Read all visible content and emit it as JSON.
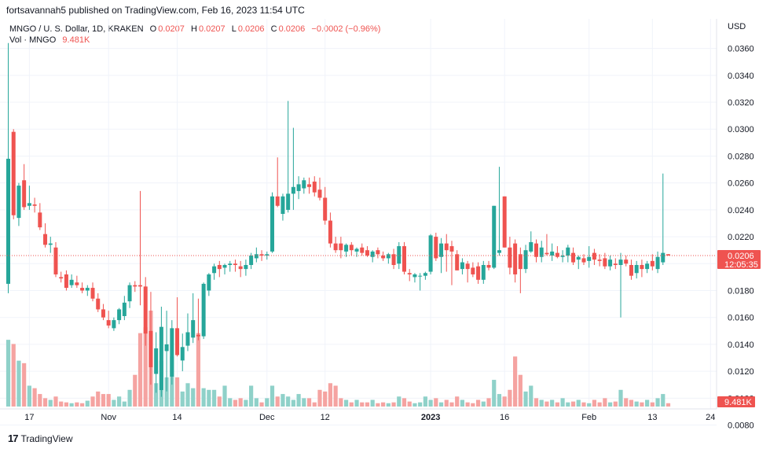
{
  "header": {
    "published": "fortsavannah5 published on TradingView.com, Feb 16, 2023 11:54 UTC",
    "symbol": "MNGO / U. S. Dollar, 1D, KRAKEN",
    "o_label": "O",
    "o_value": "0.0207",
    "h_label": "H",
    "h_value": "0.0207",
    "l_label": "L",
    "l_value": "0.0206",
    "c_label": "C",
    "c_value": "0.0206",
    "change": "−0.0002 (−0.96%)",
    "vol_label": "Vol · MNGO",
    "vol_value": "9.481K"
  },
  "footer": {
    "brand": "TradingView",
    "logo_glyph": "17"
  },
  "colors": {
    "up": "#26a69a",
    "down": "#ef5350",
    "up_vol": "#8fd1c9",
    "down_vol": "#f5a3a1",
    "grid": "#f0f3fa",
    "axis_text": "#131722",
    "price_tag": "#ef5350"
  },
  "chart_data": {
    "type": "candlestick",
    "currency": "USD",
    "ylim": [
      0.0092,
      0.0382
    ],
    "y_ticks": [
      "0.0360",
      "0.0340",
      "0.0320",
      "0.0300",
      "0.0280",
      "0.0260",
      "0.0240",
      "0.0220",
      "0.0200",
      "0.0180",
      "0.0160",
      "0.0140",
      "0.0120",
      "0.0100",
      "0.0080"
    ],
    "x_ticks": [
      {
        "label": "17",
        "i": 4
      },
      {
        "label": "Nov",
        "i": 19
      },
      {
        "label": "14",
        "i": 32
      },
      {
        "label": "Dec",
        "i": 49
      },
      {
        "label": "12",
        "i": 60
      },
      {
        "label": "2023",
        "i": 80,
        "bold": true
      },
      {
        "label": "16",
        "i": 94
      },
      {
        "label": "Feb",
        "i": 110
      },
      {
        "label": "13",
        "i": 122
      },
      {
        "label": "24",
        "i": 133
      }
    ],
    "last_price": "0.0206",
    "countdown": "12:05:35",
    "last_volume": "9.481K",
    "candles": [
      {
        "o": 0.0185,
        "h": 0.0364,
        "l": 0.0178,
        "c": 0.0278,
        "v": 80
      },
      {
        "o": 0.0298,
        "h": 0.03,
        "l": 0.0233,
        "c": 0.0236,
        "v": 75
      },
      {
        "o": 0.0234,
        "h": 0.026,
        "l": 0.0228,
        "c": 0.0258,
        "v": 55
      },
      {
        "o": 0.0262,
        "h": 0.0274,
        "l": 0.024,
        "c": 0.0242,
        "v": 52
      },
      {
        "o": 0.0243,
        "h": 0.0258,
        "l": 0.024,
        "c": 0.0245,
        "v": 25
      },
      {
        "o": 0.0244,
        "h": 0.0249,
        "l": 0.0238,
        "c": 0.0243,
        "v": 22
      },
      {
        "o": 0.0238,
        "h": 0.0245,
        "l": 0.0225,
        "c": 0.0227,
        "v": 15
      },
      {
        "o": 0.0222,
        "h": 0.023,
        "l": 0.0212,
        "c": 0.0214,
        "v": 10
      },
      {
        "o": 0.0214,
        "h": 0.022,
        "l": 0.0208,
        "c": 0.0215,
        "v": 8
      },
      {
        "o": 0.0212,
        "h": 0.0216,
        "l": 0.019,
        "c": 0.0192,
        "v": 12
      },
      {
        "o": 0.019,
        "h": 0.0194,
        "l": 0.0186,
        "c": 0.0189,
        "v": 6
      },
      {
        "o": 0.0192,
        "h": 0.0195,
        "l": 0.018,
        "c": 0.0182,
        "v": 5
      },
      {
        "o": 0.0184,
        "h": 0.0192,
        "l": 0.0182,
        "c": 0.0188,
        "v": 4
      },
      {
        "o": 0.0186,
        "h": 0.0191,
        "l": 0.0182,
        "c": 0.0184,
        "v": 5
      },
      {
        "o": 0.0182,
        "h": 0.0186,
        "l": 0.0178,
        "c": 0.018,
        "v": 4
      },
      {
        "o": 0.018,
        "h": 0.0184,
        "l": 0.0176,
        "c": 0.0182,
        "v": 7
      },
      {
        "o": 0.0182,
        "h": 0.0186,
        "l": 0.0172,
        "c": 0.0174,
        "v": 12
      },
      {
        "o": 0.0174,
        "h": 0.0178,
        "l": 0.0164,
        "c": 0.0166,
        "v": 18
      },
      {
        "o": 0.0166,
        "h": 0.017,
        "l": 0.0158,
        "c": 0.016,
        "v": 15
      },
      {
        "o": 0.0158,
        "h": 0.0165,
        "l": 0.0152,
        "c": 0.0154,
        "v": 15
      },
      {
        "o": 0.0152,
        "h": 0.016,
        "l": 0.015,
        "c": 0.0158,
        "v": 8
      },
      {
        "o": 0.0158,
        "h": 0.0167,
        "l": 0.0155,
        "c": 0.0166,
        "v": 12
      },
      {
        "o": 0.0161,
        "h": 0.0176,
        "l": 0.0158,
        "c": 0.0171,
        "v": 6
      },
      {
        "o": 0.0172,
        "h": 0.0186,
        "l": 0.0167,
        "c": 0.0184,
        "v": 20
      },
      {
        "o": 0.0184,
        "h": 0.0187,
        "l": 0.0179,
        "c": 0.0183,
        "v": 38
      },
      {
        "o": 0.0184,
        "h": 0.0254,
        "l": 0.0169,
        "c": 0.0183,
        "v": 88
      },
      {
        "o": 0.0183,
        "h": 0.019,
        "l": 0.0139,
        "c": 0.0148,
        "v": 95
      },
      {
        "o": 0.015,
        "h": 0.0179,
        "l": 0.011,
        "c": 0.0123,
        "v": 115
      },
      {
        "o": 0.0118,
        "h": 0.0149,
        "l": 0.0104,
        "c": 0.0137,
        "v": 28
      },
      {
        "o": 0.0106,
        "h": 0.0168,
        "l": 0.0101,
        "c": 0.0153,
        "v": 55
      },
      {
        "o": 0.0135,
        "h": 0.0165,
        "l": 0.0105,
        "c": 0.014,
        "v": 35
      },
      {
        "o": 0.0116,
        "h": 0.0158,
        "l": 0.011,
        "c": 0.0152,
        "v": 60
      },
      {
        "o": 0.0152,
        "h": 0.0175,
        "l": 0.0131,
        "c": 0.0132,
        "v": 35
      },
      {
        "o": 0.0128,
        "h": 0.0148,
        "l": 0.012,
        "c": 0.0138,
        "v": 18
      },
      {
        "o": 0.0139,
        "h": 0.0163,
        "l": 0.0135,
        "c": 0.0149,
        "v": 28
      },
      {
        "o": 0.0145,
        "h": 0.0178,
        "l": 0.0141,
        "c": 0.0158,
        "v": 22
      },
      {
        "o": 0.0147,
        "h": 0.0174,
        "l": 0.0143,
        "c": 0.0146,
        "v": 88
      },
      {
        "o": 0.0146,
        "h": 0.0186,
        "l": 0.0144,
        "c": 0.0185,
        "v": 22
      },
      {
        "o": 0.018,
        "h": 0.0193,
        "l": 0.0176,
        "c": 0.0192,
        "v": 20
      },
      {
        "o": 0.0193,
        "h": 0.02,
        "l": 0.0188,
        "c": 0.0198,
        "v": 20
      },
      {
        "o": 0.0199,
        "h": 0.0202,
        "l": 0.019,
        "c": 0.0196,
        "v": 12
      },
      {
        "o": 0.0197,
        "h": 0.02,
        "l": 0.0192,
        "c": 0.0199,
        "v": 25
      },
      {
        "o": 0.0199,
        "h": 0.0202,
        "l": 0.0194,
        "c": 0.02,
        "v": 10
      },
      {
        "o": 0.02,
        "h": 0.0203,
        "l": 0.0194,
        "c": 0.0199,
        "v": 8
      },
      {
        "o": 0.0198,
        "h": 0.0202,
        "l": 0.019,
        "c": 0.0196,
        "v": 10
      },
      {
        "o": 0.0196,
        "h": 0.0203,
        "l": 0.0191,
        "c": 0.0199,
        "v": 8
      },
      {
        "o": 0.0199,
        "h": 0.0208,
        "l": 0.0196,
        "c": 0.0206,
        "v": 25
      },
      {
        "o": 0.0204,
        "h": 0.0212,
        "l": 0.0201,
        "c": 0.0207,
        "v": 10
      },
      {
        "o": 0.0207,
        "h": 0.021,
        "l": 0.0202,
        "c": 0.0206,
        "v": 5
      },
      {
        "o": 0.0206,
        "h": 0.0209,
        "l": 0.0203,
        "c": 0.0207,
        "v": 10
      },
      {
        "o": 0.0209,
        "h": 0.0253,
        "l": 0.0208,
        "c": 0.025,
        "v": 25
      },
      {
        "o": 0.025,
        "h": 0.0279,
        "l": 0.0242,
        "c": 0.0243,
        "v": 12
      },
      {
        "o": 0.0237,
        "h": 0.0252,
        "l": 0.0232,
        "c": 0.025,
        "v": 15
      },
      {
        "o": 0.024,
        "h": 0.0321,
        "l": 0.0238,
        "c": 0.0252,
        "v": 12
      },
      {
        "o": 0.0252,
        "h": 0.0301,
        "l": 0.024,
        "c": 0.0257,
        "v": 8
      },
      {
        "o": 0.0254,
        "h": 0.0265,
        "l": 0.0248,
        "c": 0.0259,
        "v": 15
      },
      {
        "o": 0.0256,
        "h": 0.0264,
        "l": 0.0252,
        "c": 0.0262,
        "v": 10
      },
      {
        "o": 0.0259,
        "h": 0.0264,
        "l": 0.0252,
        "c": 0.0257,
        "v": 10
      },
      {
        "o": 0.0261,
        "h": 0.0265,
        "l": 0.025,
        "c": 0.0253,
        "v": 5
      },
      {
        "o": 0.0255,
        "h": 0.0264,
        "l": 0.0247,
        "c": 0.0249,
        "v": 20
      },
      {
        "o": 0.0249,
        "h": 0.0257,
        "l": 0.0229,
        "c": 0.0232,
        "v": 18
      },
      {
        "o": 0.0232,
        "h": 0.0238,
        "l": 0.0212,
        "c": 0.0215,
        "v": 28
      },
      {
        "o": 0.0215,
        "h": 0.022,
        "l": 0.0208,
        "c": 0.021,
        "v": 25
      },
      {
        "o": 0.0215,
        "h": 0.022,
        "l": 0.0204,
        "c": 0.021,
        "v": 10
      },
      {
        "o": 0.0209,
        "h": 0.0215,
        "l": 0.0205,
        "c": 0.0214,
        "v": 8
      },
      {
        "o": 0.0214,
        "h": 0.0216,
        "l": 0.0206,
        "c": 0.021,
        "v": 5
      },
      {
        "o": 0.0209,
        "h": 0.0212,
        "l": 0.0205,
        "c": 0.0211,
        "v": 8
      },
      {
        "o": 0.0212,
        "h": 0.0215,
        "l": 0.0206,
        "c": 0.0208,
        "v": 5
      },
      {
        "o": 0.021,
        "h": 0.0213,
        "l": 0.0205,
        "c": 0.0206,
        "v": 5
      },
      {
        "o": 0.0205,
        "h": 0.021,
        "l": 0.0201,
        "c": 0.0209,
        "v": 8
      },
      {
        "o": 0.021,
        "h": 0.0212,
        "l": 0.0204,
        "c": 0.0207,
        "v": 4
      },
      {
        "o": 0.0206,
        "h": 0.0209,
        "l": 0.0202,
        "c": 0.0204,
        "v": 5
      },
      {
        "o": 0.0204,
        "h": 0.0208,
        "l": 0.02,
        "c": 0.0207,
        "v": 4
      },
      {
        "o": 0.0207,
        "h": 0.0211,
        "l": 0.0196,
        "c": 0.0199,
        "v": 5
      },
      {
        "o": 0.02,
        "h": 0.0216,
        "l": 0.0196,
        "c": 0.0213,
        "v": 12
      },
      {
        "o": 0.0213,
        "h": 0.0216,
        "l": 0.0192,
        "c": 0.0194,
        "v": 10
      },
      {
        "o": 0.0193,
        "h": 0.0196,
        "l": 0.0187,
        "c": 0.0192,
        "v": 6
      },
      {
        "o": 0.019,
        "h": 0.0193,
        "l": 0.0186,
        "c": 0.0192,
        "v": 4
      },
      {
        "o": 0.0191,
        "h": 0.0193,
        "l": 0.018,
        "c": 0.0191,
        "v": 5
      },
      {
        "o": 0.0191,
        "h": 0.0194,
        "l": 0.0188,
        "c": 0.0193,
        "v": 12
      },
      {
        "o": 0.0194,
        "h": 0.0222,
        "l": 0.0192,
        "c": 0.0221,
        "v": 8
      },
      {
        "o": 0.022,
        "h": 0.0223,
        "l": 0.0202,
        "c": 0.0204,
        "v": 10
      },
      {
        "o": 0.0205,
        "h": 0.0219,
        "l": 0.0193,
        "c": 0.0215,
        "v": 5
      },
      {
        "o": 0.0215,
        "h": 0.0222,
        "l": 0.0194,
        "c": 0.021,
        "v": 8
      },
      {
        "o": 0.0213,
        "h": 0.0217,
        "l": 0.0184,
        "c": 0.0209,
        "v": 5
      },
      {
        "o": 0.0207,
        "h": 0.021,
        "l": 0.0195,
        "c": 0.0195,
        "v": 12
      },
      {
        "o": 0.0196,
        "h": 0.0204,
        "l": 0.0192,
        "c": 0.0201,
        "v": 8
      },
      {
        "o": 0.02,
        "h": 0.0202,
        "l": 0.0186,
        "c": 0.0196,
        "v": 5
      },
      {
        "o": 0.0197,
        "h": 0.0201,
        "l": 0.019,
        "c": 0.0192,
        "v": 4
      },
      {
        "o": 0.0198,
        "h": 0.0201,
        "l": 0.0185,
        "c": 0.0188,
        "v": 8
      },
      {
        "o": 0.0188,
        "h": 0.0202,
        "l": 0.0185,
        "c": 0.0199,
        "v": 6
      },
      {
        "o": 0.0199,
        "h": 0.0202,
        "l": 0.0195,
        "c": 0.0197,
        "v": 10
      },
      {
        "o": 0.0197,
        "h": 0.0243,
        "l": 0.0196,
        "c": 0.0243,
        "v": 32
      },
      {
        "o": 0.0208,
        "h": 0.0272,
        "l": 0.0206,
        "c": 0.021,
        "v": 15
      },
      {
        "o": 0.025,
        "h": 0.025,
        "l": 0.0212,
        "c": 0.0212,
        "v": 12
      },
      {
        "o": 0.0212,
        "h": 0.022,
        "l": 0.0192,
        "c": 0.0197,
        "v": 20
      },
      {
        "o": 0.0215,
        "h": 0.0218,
        "l": 0.0186,
        "c": 0.0192,
        "v": 60
      },
      {
        "o": 0.0207,
        "h": 0.0212,
        "l": 0.0178,
        "c": 0.0196,
        "v": 38
      },
      {
        "o": 0.0196,
        "h": 0.0214,
        "l": 0.0193,
        "c": 0.021,
        "v": 18
      },
      {
        "o": 0.0209,
        "h": 0.0224,
        "l": 0.0208,
        "c": 0.0216,
        "v": 25
      },
      {
        "o": 0.0215,
        "h": 0.0218,
        "l": 0.0201,
        "c": 0.0205,
        "v": 10
      },
      {
        "o": 0.0205,
        "h": 0.0217,
        "l": 0.0201,
        "c": 0.0212,
        "v": 8
      },
      {
        "o": 0.0208,
        "h": 0.0222,
        "l": 0.0206,
        "c": 0.0207,
        "v": 6
      },
      {
        "o": 0.0206,
        "h": 0.0215,
        "l": 0.0202,
        "c": 0.0209,
        "v": 8
      },
      {
        "o": 0.0208,
        "h": 0.0213,
        "l": 0.0204,
        "c": 0.0205,
        "v": 5
      },
      {
        "o": 0.0205,
        "h": 0.021,
        "l": 0.0201,
        "c": 0.0206,
        "v": 10
      },
      {
        "o": 0.0206,
        "h": 0.0214,
        "l": 0.0201,
        "c": 0.0212,
        "v": 5
      },
      {
        "o": 0.0208,
        "h": 0.0212,
        "l": 0.0199,
        "c": 0.0201,
        "v": 6
      },
      {
        "o": 0.0203,
        "h": 0.0206,
        "l": 0.0196,
        "c": 0.0205,
        "v": 8
      },
      {
        "o": 0.0204,
        "h": 0.0207,
        "l": 0.0199,
        "c": 0.0201,
        "v": 5
      },
      {
        "o": 0.0202,
        "h": 0.0213,
        "l": 0.0197,
        "c": 0.0205,
        "v": 4
      },
      {
        "o": 0.0208,
        "h": 0.0211,
        "l": 0.0199,
        "c": 0.0203,
        "v": 8
      },
      {
        "o": 0.0203,
        "h": 0.0207,
        "l": 0.0198,
        "c": 0.0202,
        "v": 5
      },
      {
        "o": 0.0204,
        "h": 0.0208,
        "l": 0.0196,
        "c": 0.0198,
        "v": 10
      },
      {
        "o": 0.0198,
        "h": 0.0206,
        "l": 0.0195,
        "c": 0.0203,
        "v": 5
      },
      {
        "o": 0.02,
        "h": 0.0204,
        "l": 0.0196,
        "c": 0.0199,
        "v": 6
      },
      {
        "o": 0.0199,
        "h": 0.0208,
        "l": 0.016,
        "c": 0.0203,
        "v": 20
      },
      {
        "o": 0.0203,
        "h": 0.0206,
        "l": 0.0198,
        "c": 0.02,
        "v": 10
      },
      {
        "o": 0.0199,
        "h": 0.0203,
        "l": 0.0188,
        "c": 0.0191,
        "v": 8
      },
      {
        "o": 0.0193,
        "h": 0.0202,
        "l": 0.0189,
        "c": 0.0199,
        "v": 6
      },
      {
        "o": 0.0199,
        "h": 0.0203,
        "l": 0.019,
        "c": 0.0196,
        "v": 5
      },
      {
        "o": 0.0196,
        "h": 0.0202,
        "l": 0.0193,
        "c": 0.02,
        "v": 8
      },
      {
        "o": 0.0202,
        "h": 0.0207,
        "l": 0.0195,
        "c": 0.0198,
        "v": 5
      },
      {
        "o": 0.0196,
        "h": 0.0209,
        "l": 0.0193,
        "c": 0.0205,
        "v": 10
      },
      {
        "o": 0.0201,
        "h": 0.0267,
        "l": 0.0199,
        "c": 0.0208,
        "v": 15
      },
      {
        "o": 0.0207,
        "h": 0.0207,
        "l": 0.0206,
        "c": 0.0206,
        "v": 4
      }
    ]
  }
}
